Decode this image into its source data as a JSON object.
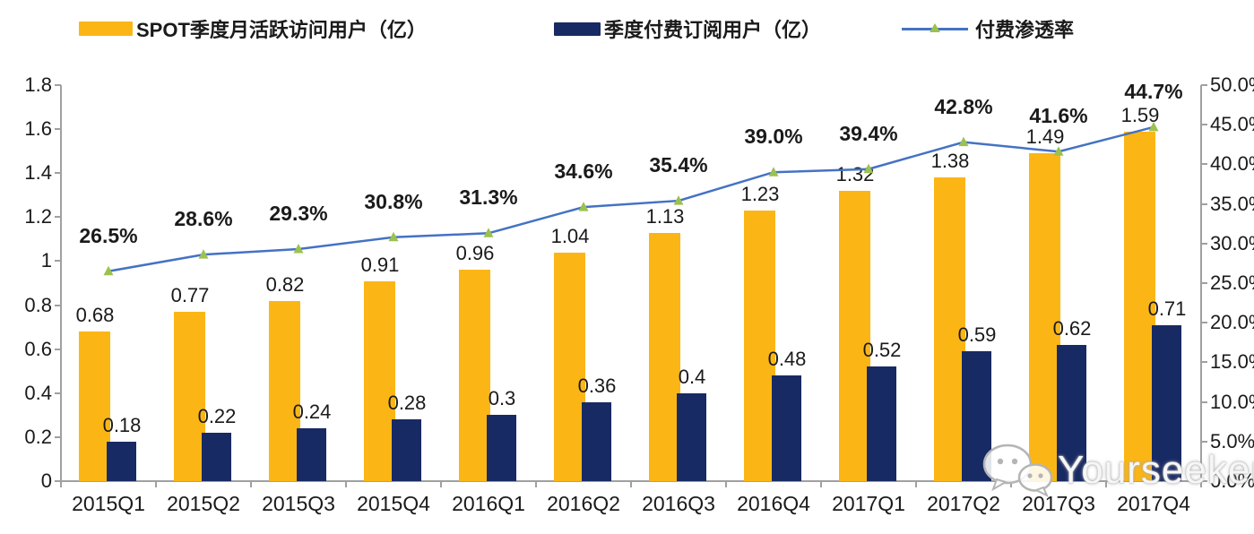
{
  "legend": {
    "items": [
      {
        "label": "SPOT季度月活跃访问用户（亿）",
        "swatch": "bar",
        "color": "#FBB616"
      },
      {
        "label": "季度付费订阅用户（亿）",
        "swatch": "bar",
        "color": "#182A64"
      },
      {
        "label": "付费渗透率",
        "swatch": "line",
        "color": "#4472C4",
        "marker_color": "#9CC14F"
      }
    ]
  },
  "watermark": {
    "text": "Yourseeker",
    "icon": "wechat-icon"
  },
  "chart_data": {
    "type": "bar",
    "subtype": "grouped-bars-with-line",
    "title": "",
    "xlabel": "",
    "ylabel": "",
    "grid": false,
    "legend_position": "top",
    "categories": [
      "2015Q1",
      "2015Q2",
      "2015Q3",
      "2015Q4",
      "2016Q1",
      "2016Q2",
      "2016Q3",
      "2016Q4",
      "2017Q1",
      "2017Q2",
      "2017Q3",
      "2017Q4"
    ],
    "series": [
      {
        "name": "SPOT季度月活跃访问用户（亿）",
        "type": "bar",
        "axis": "left",
        "color": "#FBB616",
        "values": [
          0.68,
          0.77,
          0.82,
          0.91,
          0.96,
          1.04,
          1.13,
          1.23,
          1.32,
          1.38,
          1.49,
          1.59
        ],
        "labels": [
          "0.68",
          "0.77",
          "0.82",
          "0.91",
          "0.96",
          "1.04",
          "1.13",
          "1.23",
          "1.32",
          "1.38",
          "1.49",
          "1.59"
        ]
      },
      {
        "name": "季度付费订阅用户（亿）",
        "type": "bar",
        "axis": "left",
        "color": "#182A64",
        "values": [
          0.18,
          0.22,
          0.24,
          0.28,
          0.3,
          0.36,
          0.4,
          0.48,
          0.52,
          0.59,
          0.62,
          0.71
        ],
        "labels": [
          "0.18",
          "0.22",
          "0.24",
          "0.28",
          "0.3",
          "0.36",
          "0.4",
          "0.48",
          "0.52",
          "0.59",
          "0.62",
          "0.71"
        ]
      },
      {
        "name": "付费渗透率",
        "type": "line",
        "axis": "right",
        "color": "#4472C4",
        "marker": "triangle",
        "marker_color": "#9CC14F",
        "values": [
          26.5,
          28.6,
          29.3,
          30.8,
          31.3,
          34.6,
          35.4,
          39.0,
          39.4,
          42.8,
          41.6,
          44.7
        ],
        "labels": [
          "26.5%",
          "28.6%",
          "29.3%",
          "30.8%",
          "31.3%",
          "34.6%",
          "35.4%",
          "39.0%",
          "39.4%",
          "42.8%",
          "41.6%",
          "44.7%"
        ]
      }
    ],
    "left_axis": {
      "min": 0,
      "max": 1.8,
      "step": 0.2,
      "ticks": [
        "0",
        "0.2",
        "0.4",
        "0.6",
        "0.8",
        "1",
        "1.2",
        "1.4",
        "1.6",
        "1.8"
      ]
    },
    "right_axis": {
      "min": 0,
      "max": 50,
      "step": 5,
      "ticks": [
        "0.0%",
        "5.0%",
        "10.0%",
        "15.0%",
        "20.0%",
        "25.0%",
        "30.0%",
        "35.0%",
        "40.0%",
        "45.0%",
        "50.0%"
      ]
    }
  }
}
